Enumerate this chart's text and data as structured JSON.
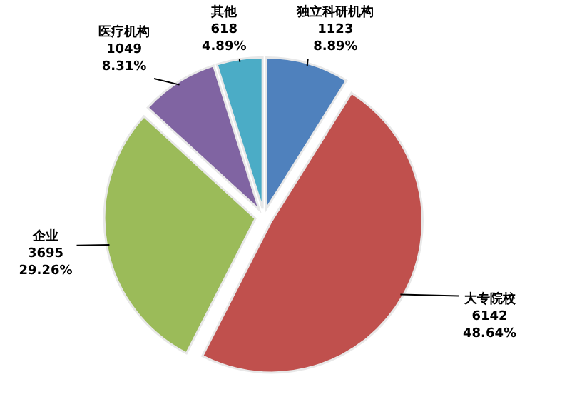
{
  "chart_data": {
    "type": "pie",
    "categories": [
      "独立科研机构",
      "大专院校",
      "企业",
      "医疗机构",
      "其他"
    ],
    "values": [
      1123,
      6142,
      3695,
      1049,
      618
    ],
    "colors": [
      "#4f81bd",
      "#c0504d",
      "#9bbb59",
      "#8064a2",
      "#4bacc6"
    ],
    "value_labels": [
      "1123\n8.89%",
      "6142\n48.64%",
      "3695\n29.26%",
      "1049\n8.31%",
      "618\n4.89%"
    ]
  }
}
